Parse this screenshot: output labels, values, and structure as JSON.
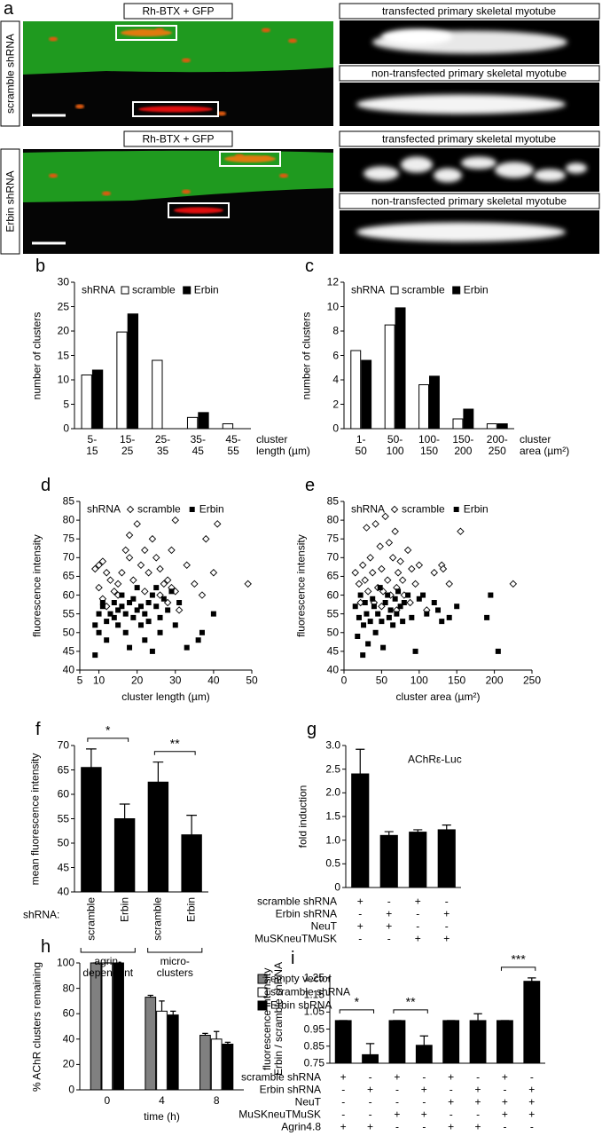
{
  "panel_a": {
    "panel": "a",
    "rows": [
      {
        "label": "scramble shRNA",
        "image_title": "Rh-BTX + GFP",
        "views": [
          "transfected primary skeletal myotube",
          "non-transfected primary skeletal myotube"
        ]
      },
      {
        "label": "Erbin shRNA",
        "image_title": "Rh-BTX + GFP",
        "views": [
          "transfected primary skeletal myotube",
          "non-transfected primary skeletal myotube"
        ]
      }
    ]
  },
  "chart_data": [
    {
      "type": "bar",
      "panel": "b",
      "legend_title": "shRNA",
      "ylabel": "number of clusters",
      "xlabel": "cluster\nlength (µm)",
      "categories": [
        "5-\n15",
        "15-\n25",
        "25-\n35",
        "35-\n45",
        "45-\n55"
      ],
      "series": [
        {
          "name": "scramble",
          "color": "#ffffff",
          "values": [
            11,
            19.8,
            14,
            2.3,
            1
          ]
        },
        {
          "name": "Erbin",
          "color": "#000000",
          "values": [
            12,
            23.5,
            0,
            3.3,
            0
          ]
        }
      ],
      "ylim": [
        0,
        30
      ],
      "yticks": [
        0,
        5,
        10,
        15,
        20,
        25,
        30
      ]
    },
    {
      "type": "bar",
      "panel": "c",
      "legend_title": "shRNA",
      "ylabel": "number of clusters",
      "xlabel": "cluster\narea (µm²)",
      "categories": [
        "1-\n50",
        "50-\n100",
        "100-\n150",
        "150-\n200",
        "200-\n250"
      ],
      "series": [
        {
          "name": "scramble",
          "color": "#ffffff",
          "values": [
            6.4,
            8.5,
            3.6,
            0.8,
            0.4
          ]
        },
        {
          "name": "Erbin",
          "color": "#000000",
          "values": [
            5.6,
            9.9,
            4.3,
            1.6,
            0.4
          ]
        }
      ],
      "ylim": [
        0,
        12
      ],
      "yticks": [
        0,
        2,
        4,
        6,
        8,
        10,
        12
      ]
    },
    {
      "type": "scatter",
      "panel": "d",
      "legend_title": "shRNA",
      "ylabel": "fluorescence intensity",
      "xlabel": "cluster length (µm)",
      "series": [
        {
          "name": "scramble",
          "marker": "diamond",
          "color": "#000000",
          "x": [
            9,
            10,
            11,
            12,
            10,
            11,
            13,
            14,
            15,
            16,
            18,
            18,
            17,
            20,
            19,
            21,
            22,
            24,
            23,
            25,
            26,
            27,
            28,
            29,
            29,
            30,
            28,
            31,
            33,
            35,
            37,
            38,
            40,
            41,
            49,
            12,
            15,
            22,
            26,
            30
          ],
          "y": [
            67,
            68,
            69,
            66,
            62,
            59,
            64,
            61,
            60,
            66,
            70,
            76,
            72,
            79,
            64,
            68,
            72,
            75,
            66,
            70,
            67,
            63,
            64,
            62,
            72,
            80,
            58,
            56,
            68,
            63,
            60,
            75,
            66,
            79,
            63,
            57,
            63,
            61,
            60,
            61
          ]
        },
        {
          "name": "Erbin",
          "marker": "square",
          "color": "#000000",
          "x": [
            9,
            9,
            10,
            10,
            11,
            11,
            12,
            12,
            13,
            14,
            14,
            15,
            15,
            16,
            16,
            17,
            17,
            18,
            18,
            19,
            19,
            20,
            20,
            21,
            21,
            22,
            22,
            23,
            23,
            24,
            24,
            25,
            25,
            26,
            26,
            27,
            28,
            29,
            30,
            31,
            33,
            36,
            37,
            40
          ],
          "y": [
            44,
            52,
            50,
            55,
            57,
            58,
            53,
            48,
            55,
            54,
            58,
            52,
            56,
            57,
            60,
            55,
            50,
            58,
            46,
            54,
            59,
            56,
            62,
            52,
            57,
            55,
            48,
            58,
            53,
            60,
            45,
            57,
            62,
            54,
            50,
            59,
            56,
            61,
            52,
            58,
            46,
            48,
            50,
            55
          ]
        }
      ],
      "xlim": [
        5,
        50
      ],
      "xticks": [
        5,
        10,
        20,
        30,
        40,
        50
      ],
      "ylim": [
        40,
        85
      ],
      "yticks": [
        40,
        45,
        50,
        55,
        60,
        65,
        70,
        75,
        80,
        85
      ]
    },
    {
      "type": "scatter",
      "panel": "e",
      "legend_title": "shRNA",
      "ylabel": "fluorescence intensity",
      "xlabel": "cluster area (µm²)",
      "series": [
        {
          "name": "scramble",
          "marker": "diamond",
          "color": "#000000",
          "x": [
            15,
            20,
            22,
            25,
            28,
            30,
            32,
            35,
            38,
            40,
            42,
            45,
            48,
            50,
            52,
            55,
            58,
            60,
            62,
            65,
            68,
            70,
            72,
            75,
            78,
            80,
            85,
            88,
            90,
            95,
            100,
            110,
            120,
            130,
            132,
            140,
            155,
            225,
            70,
            50
          ],
          "y": [
            66,
            63,
            58,
            68,
            64,
            78,
            61,
            70,
            66,
            58,
            79,
            62,
            73,
            67,
            61,
            81,
            64,
            74,
            60,
            70,
            77,
            62,
            66,
            69,
            64,
            60,
            72,
            58,
            67,
            63,
            68,
            56,
            66,
            68,
            67,
            63,
            77,
            63,
            56,
            57
          ]
        },
        {
          "name": "Erbin",
          "marker": "square",
          "color": "#000000",
          "x": [
            15,
            18,
            20,
            22,
            25,
            26,
            28,
            30,
            32,
            35,
            38,
            40,
            42,
            45,
            48,
            50,
            52,
            55,
            58,
            60,
            62,
            65,
            68,
            70,
            72,
            75,
            78,
            80,
            85,
            90,
            95,
            100,
            105,
            110,
            120,
            125,
            130,
            140,
            150,
            190,
            195,
            205
          ],
          "y": [
            57,
            49,
            54,
            60,
            44,
            52,
            58,
            55,
            47,
            53,
            59,
            57,
            50,
            55,
            62,
            53,
            46,
            58,
            60,
            54,
            56,
            52,
            59,
            55,
            61,
            57,
            53,
            58,
            60,
            54,
            45,
            59,
            60,
            55,
            58,
            56,
            53,
            54,
            57,
            54,
            60,
            45
          ]
        }
      ],
      "xlim": [
        0,
        250
      ],
      "xticks": [
        0,
        50,
        100,
        150,
        200,
        250
      ],
      "ylim": [
        40,
        85
      ],
      "yticks": [
        40,
        45,
        50,
        55,
        60,
        65,
        70,
        75,
        80,
        85
      ]
    },
    {
      "type": "bar",
      "panel": "f",
      "ylabel": "mean fluorescence intensity",
      "row_label": "shRNA:",
      "categories": [
        "scramble",
        "Erbin",
        "scramble",
        "Erbin"
      ],
      "values": [
        65.5,
        55,
        62.5,
        51.7
      ],
      "errors": [
        3.8,
        3,
        4.1,
        4
      ],
      "color": "#000000",
      "groups": [
        {
          "label": "agrin-\ndependent",
          "categories": [
            0,
            1
          ]
        },
        {
          "label": "micro-\nclusters",
          "categories": [
            2,
            3
          ]
        }
      ],
      "significance": [
        {
          "text": "*",
          "between": [
            0,
            1
          ]
        },
        {
          "text": "**",
          "between": [
            2,
            3
          ]
        }
      ],
      "ylim": [
        40,
        70
      ],
      "yticks": [
        40,
        45,
        50,
        55,
        60,
        65,
        70
      ]
    },
    {
      "type": "bar",
      "panel": "g",
      "ylabel": "fold induction",
      "annotation": "AChRε-Luc",
      "values": [
        2.4,
        1.1,
        1.17,
        1.22
      ],
      "errors": [
        0.52,
        0.08,
        0.05,
        0.1
      ],
      "color": "#000000",
      "conditions": [
        {
          "label": "scramble shRNA",
          "signs": [
            "+",
            "-",
            "+",
            "-"
          ]
        },
        {
          "label": "Erbin shRNA",
          "signs": [
            "-",
            "+",
            "-",
            "+"
          ]
        },
        {
          "label": "NeuT",
          "signs": [
            "+",
            "+",
            "-",
            "-"
          ]
        },
        {
          "label": "MuSKneuTMuSK",
          "signs": [
            "-",
            "-",
            "+",
            "+"
          ]
        }
      ],
      "ylim": [
        0,
        3
      ],
      "yticks": [
        0,
        0.5,
        {
          "value": 1,
          "label": "1.0"
        },
        1.5,
        {
          "value": 2,
          "label": "2.0"
        },
        2.5,
        {
          "value": 3,
          "label": "3.0"
        }
      ]
    },
    {
      "type": "bar",
      "panel": "h",
      "ylabel": "% AChR clusters remaining",
      "xlabel": "time (h)",
      "categories": [
        "0",
        "4",
        "8"
      ],
      "series": [
        {
          "name": "empty vector",
          "color": "#808080",
          "values": [
            100,
            73,
            43
          ],
          "errors": [
            0,
            1.5,
            1.5
          ]
        },
        {
          "name": "scramble shRNA",
          "color": "#ffffff",
          "values": [
            100,
            62,
            40
          ],
          "errors": [
            0,
            8,
            6
          ]
        },
        {
          "name": "Erbin shRNA",
          "color": "#000000",
          "values": [
            100,
            59,
            36
          ],
          "errors": [
            0,
            3,
            1.5
          ]
        }
      ],
      "ylim": [
        0,
        100
      ],
      "yticks": [
        0,
        20,
        40,
        60,
        80,
        100
      ]
    },
    {
      "type": "bar",
      "panel": "i",
      "ylabel": "fluorescence intensity\nErbin / scramble shRNA",
      "values": [
        1,
        0.8,
        1,
        0.855,
        1,
        1,
        1,
        1.23
      ],
      "errors": [
        0,
        0.065,
        0,
        0.055,
        0,
        0.04,
        0,
        0.02
      ],
      "color": "#000000",
      "significance": [
        {
          "text": "*",
          "between": [
            0,
            1
          ]
        },
        {
          "text": "**",
          "between": [
            2,
            3
          ]
        },
        {
          "text": "***",
          "between": [
            6,
            7
          ]
        }
      ],
      "conditions": [
        {
          "label": "scramble shRNA",
          "signs": [
            "+",
            "-",
            "+",
            "-",
            "+",
            "-",
            "+",
            "-"
          ]
        },
        {
          "label": "Erbin shRNA",
          "signs": [
            "-",
            "+",
            "-",
            "+",
            "-",
            "+",
            "-",
            "+"
          ]
        },
        {
          "label": "NeuT",
          "signs": [
            "-",
            "-",
            "-",
            "-",
            "+",
            "+",
            "+",
            "+"
          ]
        },
        {
          "label": "MuSKneuTMuSK",
          "signs": [
            "-",
            "-",
            "+",
            "+",
            "-",
            "-",
            "+",
            "+"
          ]
        },
        {
          "label": "Agrin4.8",
          "signs": [
            "+",
            "+",
            "-",
            "-",
            "+",
            "+",
            "-",
            "-"
          ]
        }
      ],
      "ylim": [
        0.75,
        1.27
      ],
      "yticks": [
        0.75,
        0.85,
        0.95,
        1.05,
        1.15,
        1.25
      ]
    }
  ]
}
